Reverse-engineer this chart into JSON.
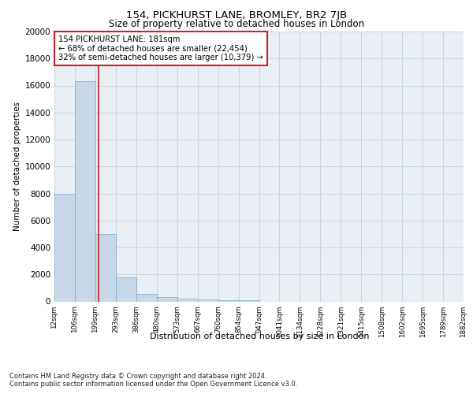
{
  "title": "154, PICKHURST LANE, BROMLEY, BR2 7JB",
  "subtitle": "Size of property relative to detached houses in London",
  "xlabel": "Distribution of detached houses by size in London",
  "ylabel": "Number of detached properties",
  "annotation_line1": "154 PICKHURST LANE: 181sqm",
  "annotation_line2": "← 68% of detached houses are smaller (22,454)",
  "annotation_line3": "32% of semi-detached houses are larger (10,379) →",
  "footnote1": "Contains HM Land Registry data © Crown copyright and database right 2024.",
  "footnote2": "Contains public sector information licensed under the Open Government Licence v3.0.",
  "bar_heights": [
    8000,
    16300,
    5000,
    1800,
    550,
    350,
    200,
    130,
    100,
    80,
    0,
    0,
    0,
    0,
    0,
    0,
    0,
    0,
    0,
    0
  ],
  "tick_labels": [
    "12sqm",
    "106sqm",
    "199sqm",
    "293sqm",
    "386sqm",
    "480sqm",
    "573sqm",
    "667sqm",
    "760sqm",
    "854sqm",
    "947sqm",
    "1041sqm",
    "1134sqm",
    "1228sqm",
    "1321sqm",
    "1415sqm",
    "1508sqm",
    "1602sqm",
    "1695sqm",
    "1789sqm",
    "1882sqm"
  ],
  "n_bins": 20,
  "property_bin": 1,
  "bar_color": "#c8d8e8",
  "bar_edge_color": "#7aaac8",
  "vline_color": "#cc2222",
  "annotation_box_facecolor": "#ffffff",
  "annotation_box_edgecolor": "#cc2222",
  "grid_color": "#c8d4de",
  "bg_color": "#e8eef4",
  "ylim": [
    0,
    20000
  ],
  "yticks": [
    0,
    2000,
    4000,
    6000,
    8000,
    10000,
    12000,
    14000,
    16000,
    18000,
    20000
  ]
}
